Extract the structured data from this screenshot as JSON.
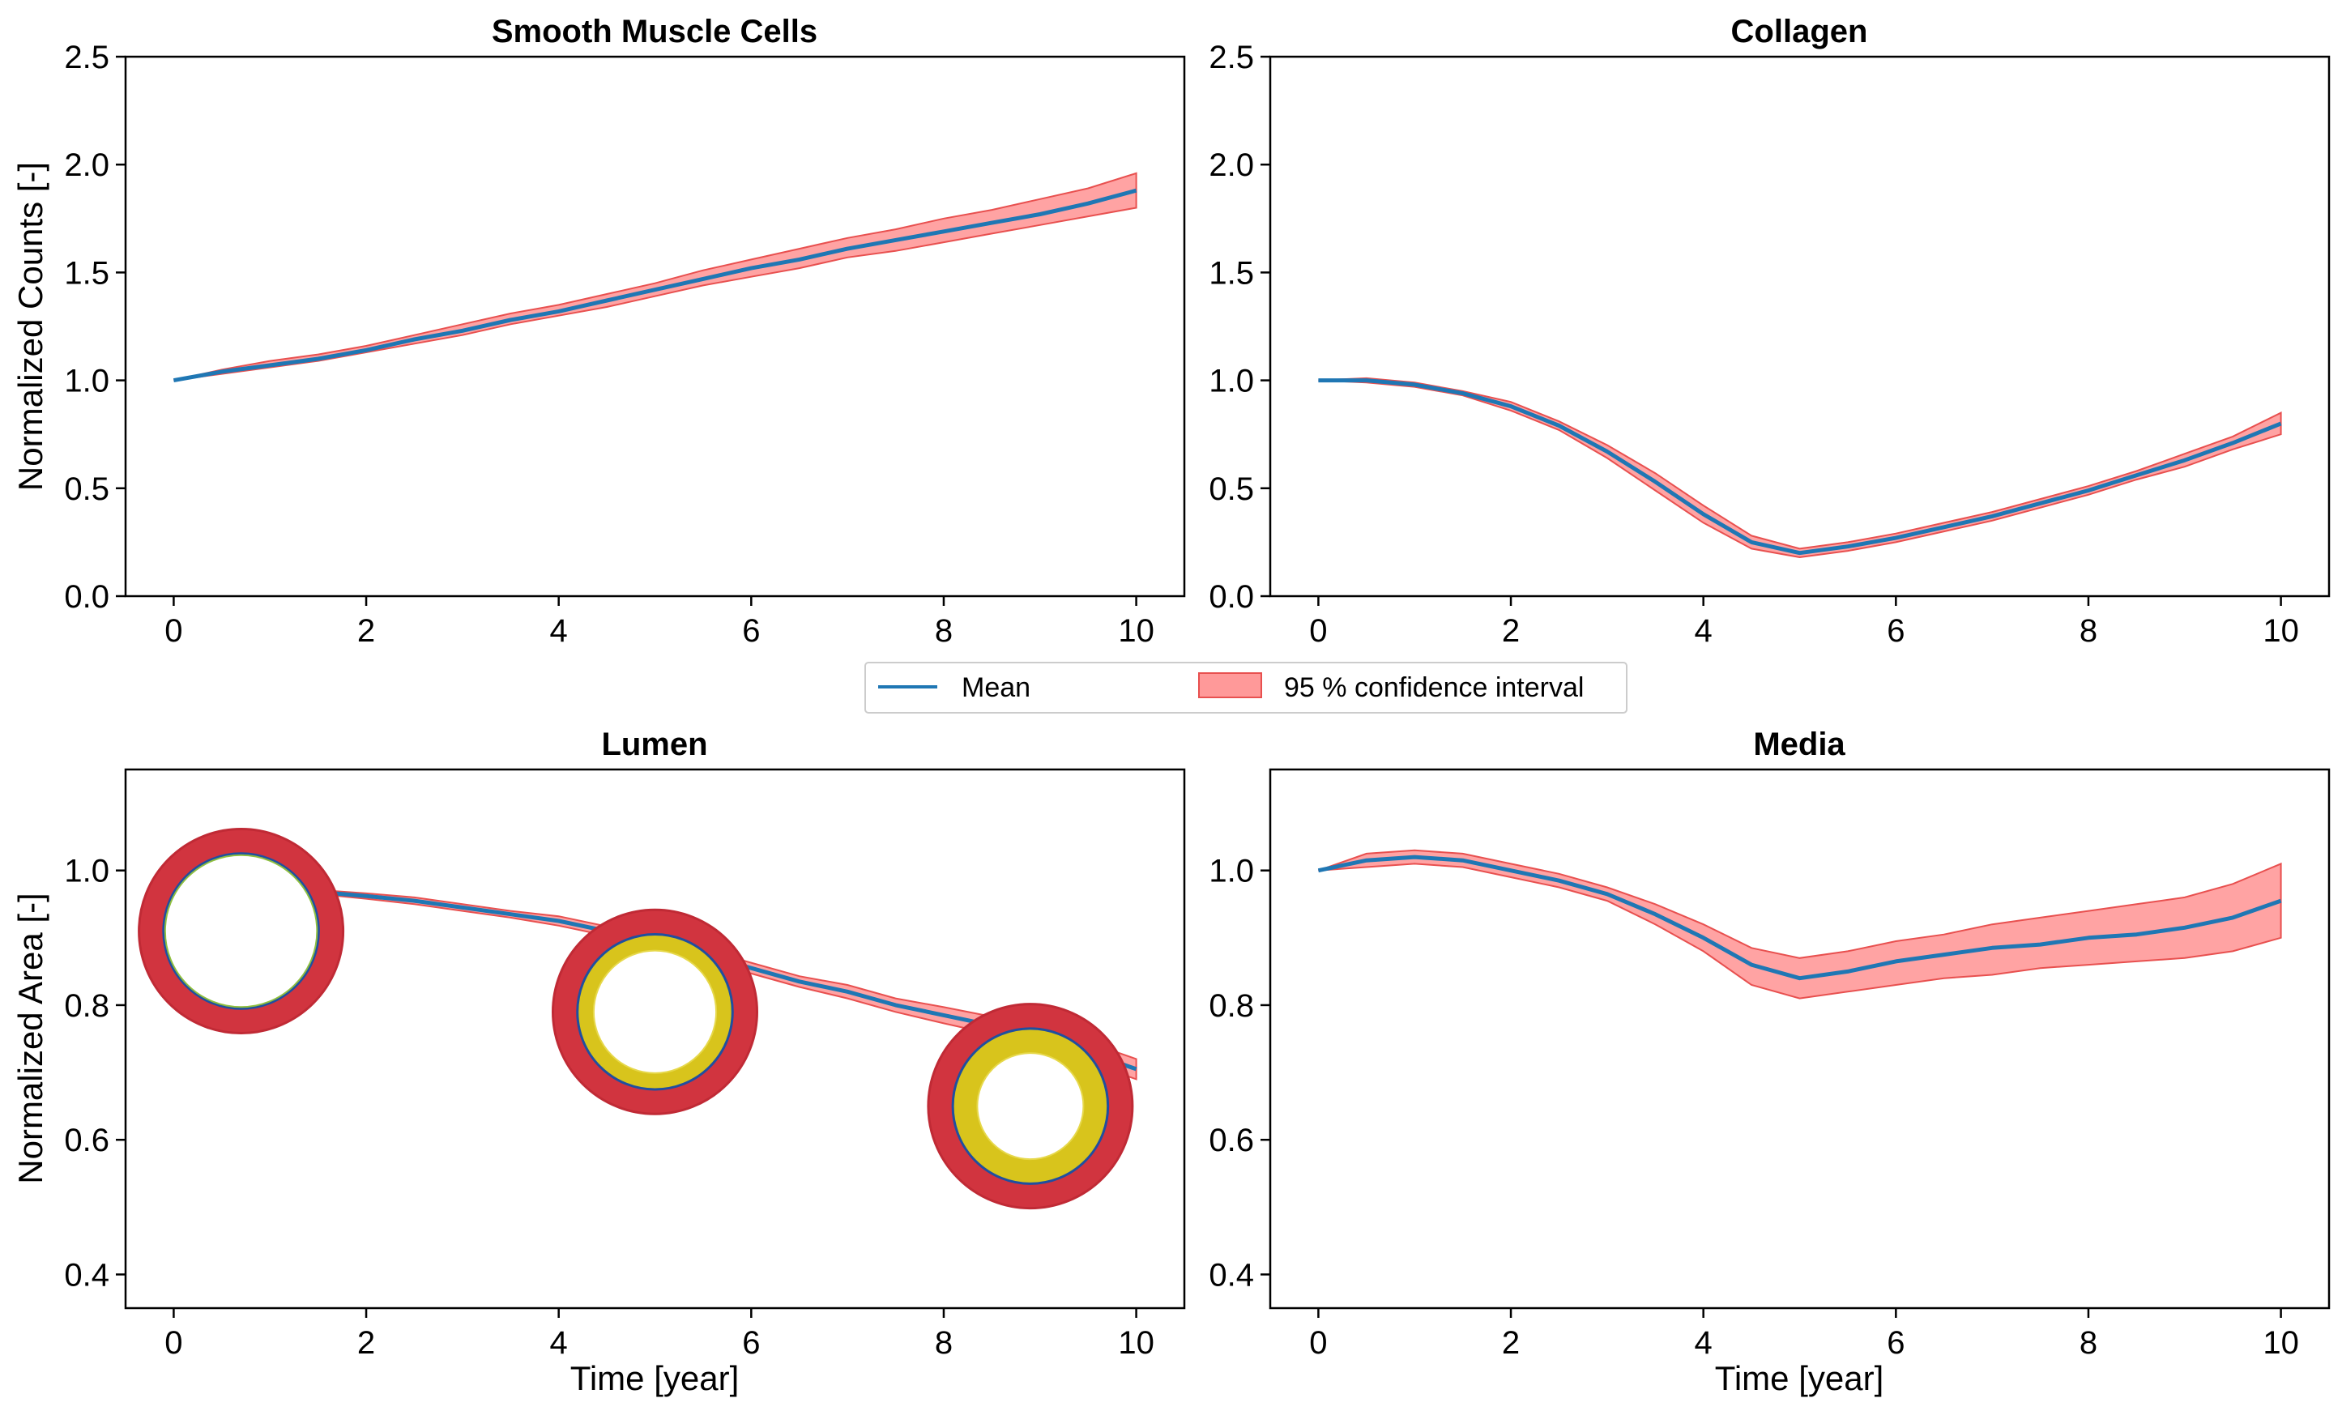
{
  "chart_data": [
    {
      "type": "line",
      "panel": "top-left",
      "title": "Smooth Muscle Cells",
      "xlabel": "",
      "ylabel": "Normalized Counts [-]",
      "xlim": [
        -0.5,
        10.5
      ],
      "ylim": [
        0,
        2.5
      ],
      "xticks": [
        0,
        2,
        4,
        6,
        8,
        10
      ],
      "yticks": [
        0,
        0.5,
        1,
        1.5,
        2,
        2.5
      ],
      "xtick_labels": [
        "0",
        "2",
        "4",
        "6",
        "8",
        "10"
      ],
      "ytick_labels": [
        "0.0",
        "0.5",
        "1.0",
        "1.5",
        "2.0",
        "2.5"
      ],
      "x": [
        0,
        0.5,
        1,
        1.5,
        2,
        2.5,
        3,
        3.5,
        4,
        4.5,
        5,
        5.5,
        6,
        6.5,
        7,
        7.5,
        8,
        8.5,
        9,
        9.5,
        10
      ],
      "series": [
        {
          "name": "Mean",
          "values": [
            1.0,
            1.04,
            1.07,
            1.1,
            1.14,
            1.19,
            1.23,
            1.28,
            1.32,
            1.37,
            1.42,
            1.47,
            1.52,
            1.56,
            1.61,
            1.65,
            1.69,
            1.73,
            1.77,
            1.82,
            1.88
          ]
        },
        {
          "name": "95 % confidence interval",
          "lower": [
            1.0,
            1.03,
            1.06,
            1.09,
            1.13,
            1.17,
            1.21,
            1.26,
            1.3,
            1.34,
            1.39,
            1.44,
            1.48,
            1.52,
            1.57,
            1.6,
            1.64,
            1.68,
            1.72,
            1.76,
            1.8
          ],
          "upper": [
            1.0,
            1.05,
            1.09,
            1.12,
            1.16,
            1.21,
            1.26,
            1.31,
            1.35,
            1.4,
            1.45,
            1.51,
            1.56,
            1.61,
            1.66,
            1.7,
            1.75,
            1.79,
            1.84,
            1.89,
            1.96
          ]
        }
      ]
    },
    {
      "type": "line",
      "panel": "top-right",
      "title": "Collagen",
      "xlabel": "",
      "ylabel": "",
      "xlim": [
        -0.5,
        10.5
      ],
      "ylim": [
        0,
        2.5
      ],
      "xticks": [
        0,
        2,
        4,
        6,
        8,
        10
      ],
      "yticks": [
        0,
        0.5,
        1,
        1.5,
        2,
        2.5
      ],
      "xtick_labels": [
        "0",
        "2",
        "4",
        "6",
        "8",
        "10"
      ],
      "ytick_labels": [
        "0.0",
        "0.5",
        "1.0",
        "1.5",
        "2.0",
        "2.5"
      ],
      "x": [
        0,
        0.5,
        1,
        1.5,
        2,
        2.5,
        3,
        3.5,
        4,
        4.5,
        5,
        5.5,
        6,
        6.5,
        7,
        7.5,
        8,
        8.5,
        9,
        9.5,
        10
      ],
      "series": [
        {
          "name": "Mean",
          "values": [
            1.0,
            1.0,
            0.98,
            0.94,
            0.88,
            0.79,
            0.67,
            0.53,
            0.38,
            0.25,
            0.2,
            0.23,
            0.27,
            0.32,
            0.37,
            0.43,
            0.49,
            0.56,
            0.63,
            0.71,
            0.8
          ]
        },
        {
          "name": "95 % confidence interval",
          "lower": [
            1.0,
            0.99,
            0.97,
            0.93,
            0.86,
            0.77,
            0.64,
            0.49,
            0.34,
            0.22,
            0.18,
            0.21,
            0.25,
            0.3,
            0.35,
            0.41,
            0.47,
            0.54,
            0.6,
            0.68,
            0.75
          ],
          "upper": [
            1.0,
            1.01,
            0.99,
            0.95,
            0.9,
            0.81,
            0.7,
            0.57,
            0.42,
            0.28,
            0.22,
            0.25,
            0.29,
            0.34,
            0.39,
            0.45,
            0.51,
            0.58,
            0.66,
            0.74,
            0.85
          ]
        }
      ]
    },
    {
      "type": "line",
      "panel": "bottom-left",
      "title": "Lumen",
      "xlabel": "Time [year]",
      "ylabel": "Normalized Area [-]",
      "xlim": [
        -0.5,
        10.5
      ],
      "ylim": [
        0.35,
        1.15
      ],
      "xticks": [
        0,
        2,
        4,
        6,
        8,
        10
      ],
      "yticks": [
        0.4,
        0.6,
        0.8,
        1.0
      ],
      "xtick_labels": [
        "0",
        "2",
        "4",
        "6",
        "8",
        "10"
      ],
      "ytick_labels": [
        "0.4",
        "0.6",
        "0.8",
        "1.0"
      ],
      "x": [
        0,
        0.5,
        1,
        1.5,
        2,
        2.5,
        3,
        3.5,
        4,
        4.5,
        5,
        5.5,
        6,
        6.5,
        7,
        7.5,
        8,
        8.5,
        9,
        9.5,
        10
      ],
      "series": [
        {
          "name": "Mean",
          "values": [
            1.0,
            0.985,
            0.975,
            0.968,
            0.962,
            0.955,
            0.945,
            0.935,
            0.925,
            0.91,
            0.895,
            0.875,
            0.855,
            0.835,
            0.82,
            0.8,
            0.785,
            0.77,
            0.75,
            0.73,
            0.705
          ]
        },
        {
          "name": "95 % confidence interval",
          "lower": [
            1.0,
            0.982,
            0.972,
            0.965,
            0.958,
            0.95,
            0.94,
            0.93,
            0.918,
            0.903,
            0.887,
            0.867,
            0.847,
            0.827,
            0.81,
            0.79,
            0.773,
            0.757,
            0.736,
            0.715,
            0.69
          ],
          "upper": [
            1.0,
            0.988,
            0.978,
            0.971,
            0.966,
            0.96,
            0.95,
            0.94,
            0.932,
            0.917,
            0.903,
            0.883,
            0.863,
            0.843,
            0.83,
            0.81,
            0.797,
            0.783,
            0.764,
            0.745,
            0.72
          ]
        }
      ],
      "insets": [
        {
          "name": "vessel-cross-section",
          "time": 0.7,
          "value": 0.91,
          "neointima": false
        },
        {
          "name": "vessel-cross-section",
          "time": 5.0,
          "value": 0.79,
          "neointima": true
        },
        {
          "name": "vessel-cross-section",
          "time": 8.9,
          "value": 0.65,
          "neointima": true
        }
      ]
    },
    {
      "type": "line",
      "panel": "bottom-right",
      "title": "Media",
      "xlabel": "Time [year]",
      "ylabel": "",
      "xlim": [
        -0.5,
        10.5
      ],
      "ylim": [
        0.35,
        1.15
      ],
      "xticks": [
        0,
        2,
        4,
        6,
        8,
        10
      ],
      "yticks": [
        0.4,
        0.6,
        0.8,
        1.0
      ],
      "xtick_labels": [
        "0",
        "2",
        "4",
        "6",
        "8",
        "10"
      ],
      "ytick_labels": [
        "0.4",
        "0.6",
        "0.8",
        "1.0"
      ],
      "x": [
        0,
        0.5,
        1,
        1.5,
        2,
        2.5,
        3,
        3.5,
        4,
        4.5,
        5,
        5.5,
        6,
        6.5,
        7,
        7.5,
        8,
        8.5,
        9,
        9.5,
        10
      ],
      "series": [
        {
          "name": "Mean",
          "values": [
            1.0,
            1.015,
            1.02,
            1.015,
            1.0,
            0.985,
            0.965,
            0.935,
            0.9,
            0.86,
            0.84,
            0.85,
            0.865,
            0.875,
            0.885,
            0.89,
            0.9,
            0.905,
            0.915,
            0.93,
            0.955
          ]
        },
        {
          "name": "95 % confidence interval",
          "lower": [
            1.0,
            1.005,
            1.01,
            1.005,
            0.99,
            0.975,
            0.955,
            0.92,
            0.88,
            0.83,
            0.81,
            0.82,
            0.83,
            0.84,
            0.845,
            0.855,
            0.86,
            0.865,
            0.87,
            0.88,
            0.9
          ],
          "upper": [
            1.0,
            1.025,
            1.03,
            1.025,
            1.01,
            0.995,
            0.975,
            0.95,
            0.92,
            0.885,
            0.87,
            0.88,
            0.895,
            0.905,
            0.92,
            0.93,
            0.94,
            0.95,
            0.96,
            0.98,
            1.01
          ]
        }
      ]
    }
  ],
  "legend": {
    "location": "center",
    "items": [
      {
        "label": "Mean",
        "kind": "line"
      },
      {
        "label": "95 % confidence interval",
        "kind": "patch"
      }
    ]
  },
  "colors": {
    "mean": "#1f77b4",
    "ci_fill": "#ff9999",
    "ci_edge": "#e8504f",
    "vessel_wall": "#d1343f",
    "neointima": "#d8c41c",
    "inner_ring": "#1f4fa0",
    "inner_ring_green": "#8fbf3f"
  }
}
